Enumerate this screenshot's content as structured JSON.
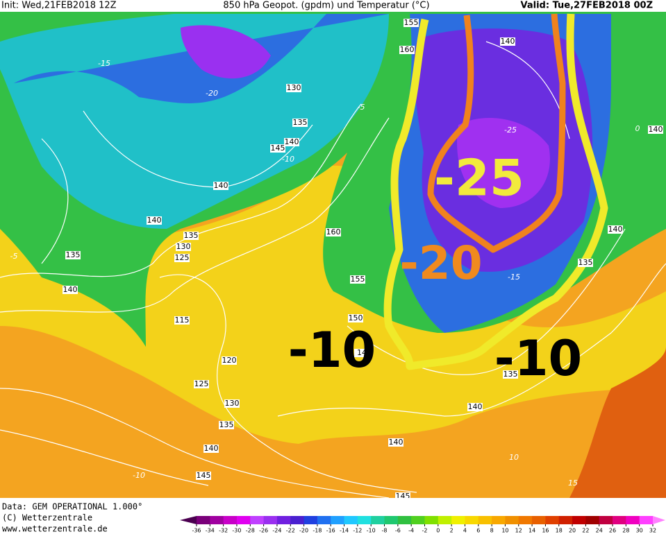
{
  "header": {
    "init": "Init: Wed,21FEB2018 12Z",
    "title": "850 hPa Geopot. (gpdm) und Temperatur (°C)",
    "valid": "Valid: Tue,27FEB2018 00Z"
  },
  "annotations": [
    {
      "label": "-25",
      "color": "#f2ea3c"
    },
    {
      "label": "-20",
      "color": "#f08a1e"
    },
    {
      "label": "-10",
      "color": "#000000"
    },
    {
      "label": "-10",
      "color": "#000000"
    }
  ],
  "contour_labels": [
    "155",
    "160",
    "140",
    "130",
    "135",
    "140",
    "145",
    "140",
    "140",
    "160",
    "135",
    "130",
    "125",
    "135",
    "140",
    "115",
    "155",
    "150",
    "120",
    "125",
    "130",
    "135",
    "140",
    "145",
    "145",
    "135",
    "140",
    "140",
    "140",
    "135",
    "140",
    "14"
  ],
  "isotherm_labels": [
    "-15",
    "-20",
    "-5",
    "-10",
    "-25",
    "-15",
    "10",
    "15",
    "-10",
    "0",
    "-5"
  ],
  "footer": {
    "data": "Data: GEM OPERATIONAL 1.000°",
    "copyright": "(C) Wetterzentrale",
    "url": "www.wetterzentrale.de"
  },
  "colorbar": {
    "labels": [
      -36,
      -34,
      -32,
      -30,
      -28,
      -26,
      -24,
      -22,
      -20,
      -18,
      -16,
      -14,
      -12,
      -10,
      -8,
      -6,
      -4,
      -2,
      0,
      2,
      4,
      6,
      8,
      10,
      12,
      14,
      16,
      18,
      20,
      22,
      24,
      26,
      28,
      30,
      32
    ],
    "colors": [
      "#4b0050",
      "#7a007a",
      "#a000a0",
      "#c800c8",
      "#e000f0",
      "#c040ff",
      "#9a30f0",
      "#7020e0",
      "#4a20d0",
      "#2040e0",
      "#2070f0",
      "#20a0ff",
      "#20c8ff",
      "#20e0e0",
      "#20d0a0",
      "#20c870",
      "#30c040",
      "#50d020",
      "#80e000",
      "#c0f000",
      "#f0f000",
      "#f8d800",
      "#f8c000",
      "#f8a800",
      "#f09000",
      "#f07800",
      "#e86000",
      "#e04000",
      "#d02000",
      "#c00000",
      "#a00000",
      "#c00040",
      "#e00080",
      "#f000c0",
      "#ff40ff",
      "#ff80ff"
    ]
  }
}
